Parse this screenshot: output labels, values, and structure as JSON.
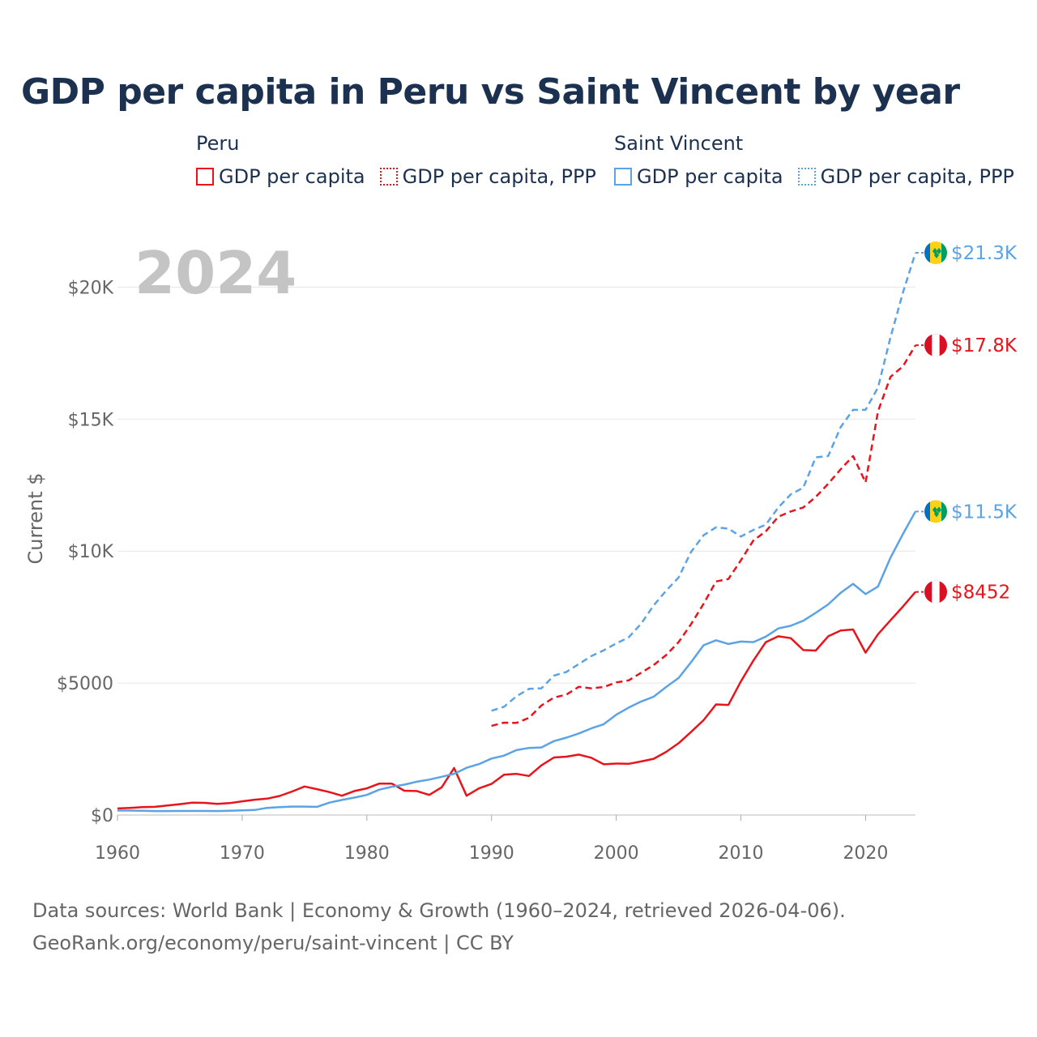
{
  "title": "GDP per capita in Peru vs Saint Vincent by year",
  "legend": {
    "groups": [
      {
        "name": "Peru",
        "color": "#e8141c",
        "items": [
          "GDP per capita",
          "GDP per capita, PPP"
        ]
      },
      {
        "name": "Saint Vincent",
        "color": "#5ba3e5",
        "items": [
          "GDP per capita",
          "GDP per capita, PPP"
        ]
      }
    ]
  },
  "year_label": "2024",
  "footer": {
    "line1": "Data sources: World Bank | Economy & Growth (1960–2024, retrieved 2026-04-06).",
    "line2": "GeoRank.org/economy/peru/saint-vincent | CC BY"
  },
  "chart_data": {
    "type": "line",
    "title": "GDP per capita in Peru vs Saint Vincent by year",
    "xlabel": "",
    "ylabel": "Current $",
    "xlim": [
      1960,
      2024
    ],
    "ylim": [
      0,
      21000
    ],
    "x_ticks": [
      1960,
      1970,
      1980,
      1990,
      2000,
      2010,
      2020
    ],
    "y_ticks": [
      0,
      5000,
      10000,
      15000,
      20000
    ],
    "y_tick_labels": [
      "$0",
      "$5000",
      "$10K",
      "$15K",
      "$20K"
    ],
    "series": [
      {
        "name": "Peru GDP per capita PPP",
        "color": "#e8141c",
        "dash": "dashed",
        "end_label": "$17.8K",
        "flag": "peru",
        "x": [
          1990,
          1991,
          1992,
          1993,
          1994,
          1995,
          1996,
          1997,
          1998,
          1999,
          2000,
          2001,
          2002,
          2003,
          2004,
          2005,
          2006,
          2007,
          2008,
          2009,
          2010,
          2011,
          2012,
          2013,
          2014,
          2015,
          2016,
          2017,
          2018,
          2019,
          2020,
          2021,
          2022,
          2023,
          2024
        ],
        "values": [
          3380,
          3500,
          3490,
          3680,
          4150,
          4450,
          4560,
          4860,
          4800,
          4850,
          5020,
          5100,
          5390,
          5680,
          6060,
          6550,
          7230,
          8000,
          8850,
          8940,
          9650,
          10400,
          10750,
          11300,
          11500,
          11650,
          12050,
          12550,
          13100,
          13600,
          12600,
          15300,
          16600,
          17000,
          17800
        ]
      },
      {
        "name": "Saint Vincent GDP per capita PPP",
        "color": "#5ba3e5",
        "dash": "dashed",
        "end_label": "$21.3K",
        "flag": "svg",
        "x": [
          1990,
          1991,
          1992,
          1993,
          1994,
          1995,
          1996,
          1997,
          1998,
          1999,
          2000,
          2001,
          2002,
          2003,
          2004,
          2005,
          2006,
          2007,
          2008,
          2009,
          2010,
          2011,
          2012,
          2013,
          2014,
          2015,
          2016,
          2017,
          2018,
          2019,
          2020,
          2021,
          2022,
          2023,
          2024
        ],
        "values": [
          3950,
          4100,
          4500,
          4780,
          4800,
          5280,
          5420,
          5720,
          6020,
          6240,
          6500,
          6730,
          7250,
          7940,
          8500,
          9000,
          9970,
          10600,
          10900,
          10850,
          10550,
          10800,
          11000,
          11650,
          12150,
          12400,
          13550,
          13600,
          14700,
          15350,
          15350,
          16200,
          18100,
          19800,
          21300
        ]
      },
      {
        "name": "Peru GDP per capita",
        "color": "#e8141c",
        "dash": "solid",
        "end_label": "$8452",
        "flag": "peru",
        "x": [
          1960,
          1961,
          1962,
          1963,
          1964,
          1965,
          1966,
          1967,
          1968,
          1969,
          1970,
          1971,
          1972,
          1973,
          1974,
          1975,
          1976,
          1977,
          1978,
          1979,
          1980,
          1981,
          1982,
          1983,
          1984,
          1985,
          1986,
          1987,
          1988,
          1989,
          1990,
          1991,
          1992,
          1993,
          1994,
          1995,
          1996,
          1997,
          1998,
          1999,
          2000,
          2001,
          2002,
          2003,
          2004,
          2005,
          2006,
          2007,
          2008,
          2009,
          2010,
          2011,
          2012,
          2013,
          2014,
          2015,
          2016,
          2017,
          2018,
          2019,
          2020,
          2021,
          2022,
          2023,
          2024
        ],
        "values": [
          250,
          270,
          300,
          310,
          360,
          410,
          470,
          460,
          420,
          450,
          520,
          580,
          620,
          720,
          890,
          1080,
          980,
          870,
          730,
          910,
          1010,
          1190,
          1190,
          920,
          910,
          760,
          1050,
          1780,
          730,
          1010,
          1180,
          1530,
          1560,
          1480,
          1880,
          2180,
          2210,
          2290,
          2170,
          1920,
          1950,
          1940,
          2030,
          2130,
          2390,
          2720,
          3150,
          3590,
          4190,
          4170,
          5060,
          5850,
          6550,
          6770,
          6700,
          6250,
          6230,
          6770,
          6990,
          7030,
          6150,
          6850,
          7380,
          7900,
          8452
        ]
      },
      {
        "name": "Saint Vincent GDP per capita",
        "color": "#5ba3e5",
        "dash": "solid",
        "end_label": "$11.5K",
        "flag": "svg",
        "x": [
          1960,
          1961,
          1962,
          1963,
          1964,
          1965,
          1966,
          1967,
          1968,
          1969,
          1970,
          1971,
          1972,
          1973,
          1974,
          1975,
          1976,
          1977,
          1978,
          1979,
          1980,
          1981,
          1982,
          1983,
          1984,
          1985,
          1986,
          1987,
          1988,
          1989,
          1990,
          1991,
          1992,
          1993,
          1994,
          1995,
          1996,
          1997,
          1998,
          1999,
          2000,
          2001,
          2002,
          2003,
          2004,
          2005,
          2006,
          2007,
          2008,
          2009,
          2010,
          2011,
          2012,
          2013,
          2014,
          2015,
          2016,
          2017,
          2018,
          2019,
          2020,
          2021,
          2022,
          2023,
          2024
        ],
        "values": [
          170,
          170,
          160,
          150,
          150,
          155,
          155,
          155,
          150,
          160,
          175,
          190,
          270,
          300,
          320,
          320,
          310,
          470,
          570,
          660,
          760,
          960,
          1070,
          1150,
          1260,
          1340,
          1450,
          1560,
          1790,
          1930,
          2140,
          2250,
          2460,
          2540,
          2560,
          2800,
          2930,
          3090,
          3280,
          3440,
          3800,
          4070,
          4300,
          4480,
          4850,
          5190,
          5790,
          6430,
          6620,
          6480,
          6570,
          6550,
          6760,
          7070,
          7170,
          7360,
          7660,
          7980,
          8420,
          8760,
          8370,
          8660,
          9750,
          10650,
          11500
        ]
      }
    ]
  }
}
